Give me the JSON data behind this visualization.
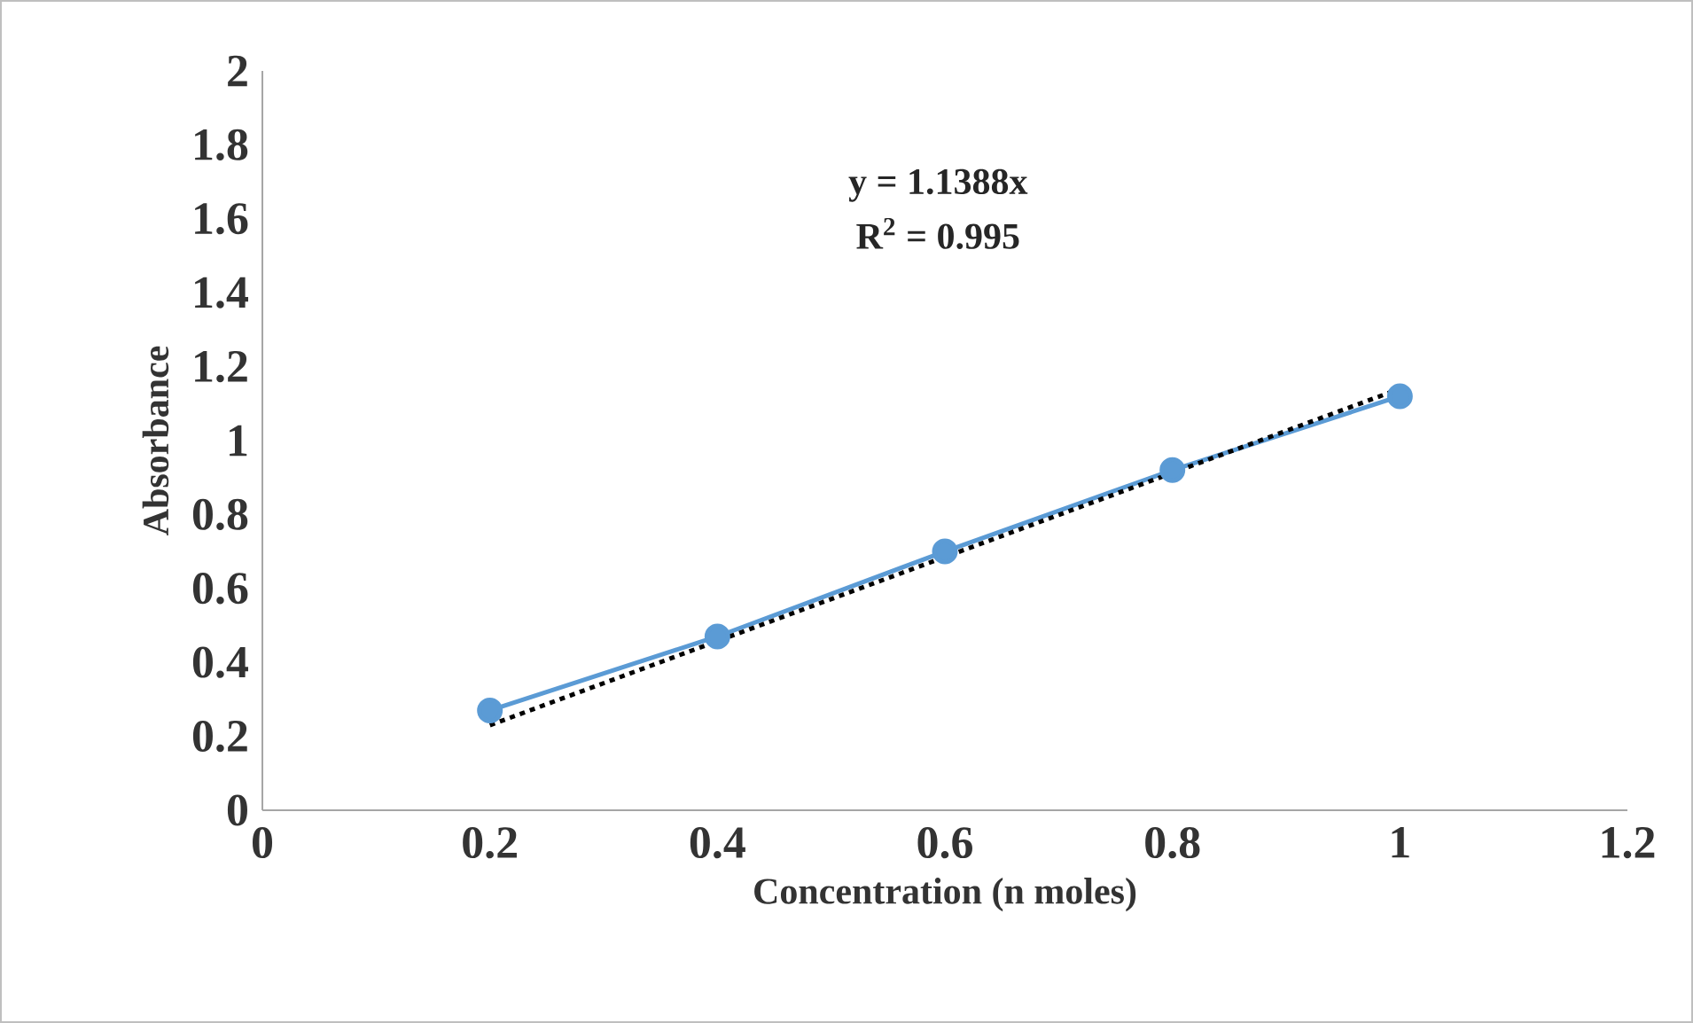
{
  "chart_data": {
    "type": "line",
    "xlabel": "Concentration (n moles)",
    "ylabel": "Absorbance",
    "x": [
      0.2,
      0.4,
      0.6,
      0.8,
      1
    ],
    "series": [
      {
        "color": "#5b9bd5",
        "marker": "circle",
        "line_style": "solid",
        "values": [
          0.27,
          0.47,
          0.7,
          0.92,
          1.12
        ]
      },
      {
        "color": "#000000",
        "marker": "none",
        "line_style": "dotted",
        "x": [
          0.2,
          1
        ],
        "values": [
          0.23,
          1.14
        ]
      }
    ],
    "annotations": [
      "y = 1.1388x",
      "R$^{2}$ = 0.995"
    ],
    "xlim": [
      0,
      1.2
    ],
    "ylim": [
      0,
      2
    ],
    "xticks": [
      0,
      0.2,
      0.4,
      0.6,
      0.8,
      1,
      1.2
    ],
    "yticks": [
      0,
      0.2,
      0.4,
      0.6,
      0.8,
      1,
      1.2,
      1.4,
      1.6,
      1.8,
      2
    ]
  }
}
